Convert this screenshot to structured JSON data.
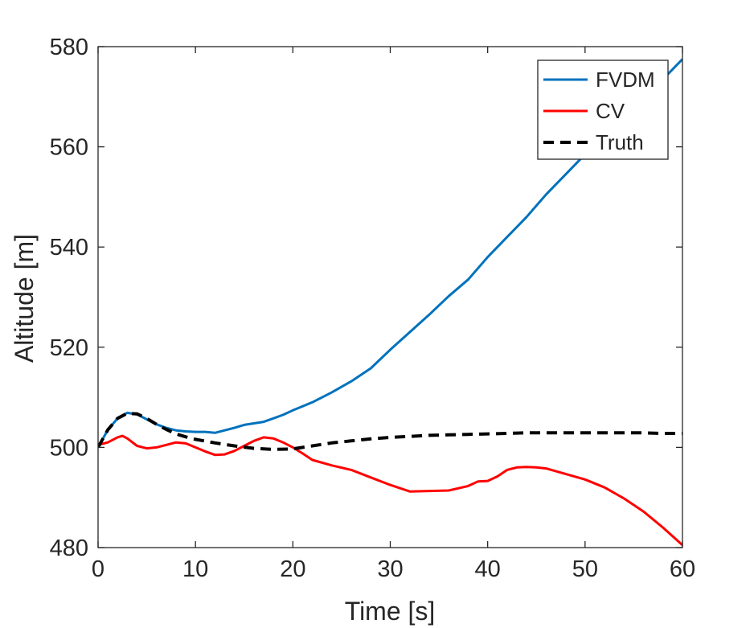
{
  "chart_data": {
    "type": "line",
    "title": "",
    "xlabel": "Time [s]",
    "ylabel": "Altitude [m]",
    "xlim": [
      0,
      60
    ],
    "ylim": [
      480,
      580
    ],
    "xticks": [
      0,
      10,
      20,
      30,
      40,
      50,
      60
    ],
    "yticks": [
      480,
      500,
      520,
      540,
      560,
      580
    ],
    "grid": false,
    "legend_position": "top-right",
    "series": [
      {
        "name": "FVDM",
        "color": "#0072BD",
        "style": "solid",
        "x": [
          0,
          1,
          2,
          3,
          4,
          5,
          6,
          7,
          8,
          9,
          10,
          11,
          12,
          13,
          14,
          15,
          16,
          17,
          18,
          19,
          20,
          22,
          24,
          26,
          28,
          30,
          32,
          34,
          36,
          38,
          40,
          42,
          44,
          46,
          48,
          50,
          52,
          54,
          56,
          58,
          60
        ],
        "y": [
          500,
          503.5,
          505.8,
          506.9,
          506.6,
          505.6,
          504.6,
          503.9,
          503.4,
          503.2,
          503.1,
          503.1,
          502.9,
          503.4,
          503.9,
          504.5,
          504.8,
          505.1,
          505.8,
          506.5,
          507.4,
          509,
          511,
          513.2,
          515.8,
          519.5,
          523,
          526.5,
          530.2,
          533.5,
          538,
          542,
          546,
          550.5,
          554.5,
          558.5,
          562.5,
          566.2,
          569.8,
          573.5,
          577.5
        ]
      },
      {
        "name": "CV",
        "color": "#FF0000",
        "style": "solid",
        "x": [
          0,
          1,
          2,
          2.5,
          3,
          4,
          5,
          6,
          7,
          8,
          9,
          10,
          11,
          12,
          13,
          14,
          15,
          16,
          17,
          18,
          19,
          20,
          21,
          22,
          24,
          26,
          28,
          30,
          32,
          34,
          36,
          38,
          39,
          40,
          41,
          42,
          43,
          44,
          45,
          46,
          48,
          50,
          52,
          54,
          56,
          58,
          60
        ],
        "y": [
          500.5,
          501,
          502,
          502.3,
          501.8,
          500.3,
          499.8,
          500,
          500.5,
          501,
          500.8,
          500,
          499.2,
          498.5,
          498.6,
          499.3,
          500.3,
          501.3,
          502,
          501.8,
          501,
          500,
          498.8,
          497.5,
          496.4,
          495.5,
          494,
          492.5,
          491.2,
          491.3,
          491.4,
          492.3,
          493.2,
          493.3,
          494.2,
          495.5,
          496,
          496.1,
          496,
          495.8,
          494.7,
          493.6,
          492,
          489.8,
          487.2,
          484,
          480.5
        ]
      },
      {
        "name": "Truth",
        "color": "#000000",
        "style": "dashed",
        "x": [
          0,
          1,
          2,
          3,
          4,
          5,
          6,
          7,
          8,
          9,
          10,
          12,
          14,
          16,
          18,
          20,
          22,
          24,
          26,
          28,
          30,
          32,
          34,
          36,
          38,
          40,
          42,
          44,
          46,
          48,
          50,
          52,
          54,
          56,
          58,
          60
        ],
        "y": [
          500,
          503.5,
          505.8,
          506.8,
          506.7,
          505.8,
          504.6,
          503.6,
          502.7,
          502.1,
          501.6,
          500.9,
          500.3,
          499.8,
          499.6,
          499.7,
          500.3,
          500.9,
          501.3,
          501.7,
          502,
          502.2,
          502.4,
          502.5,
          502.6,
          502.7,
          502.8,
          502.9,
          502.9,
          502.9,
          502.9,
          502.9,
          502.9,
          502.9,
          502.8,
          502.8
        ]
      }
    ]
  }
}
